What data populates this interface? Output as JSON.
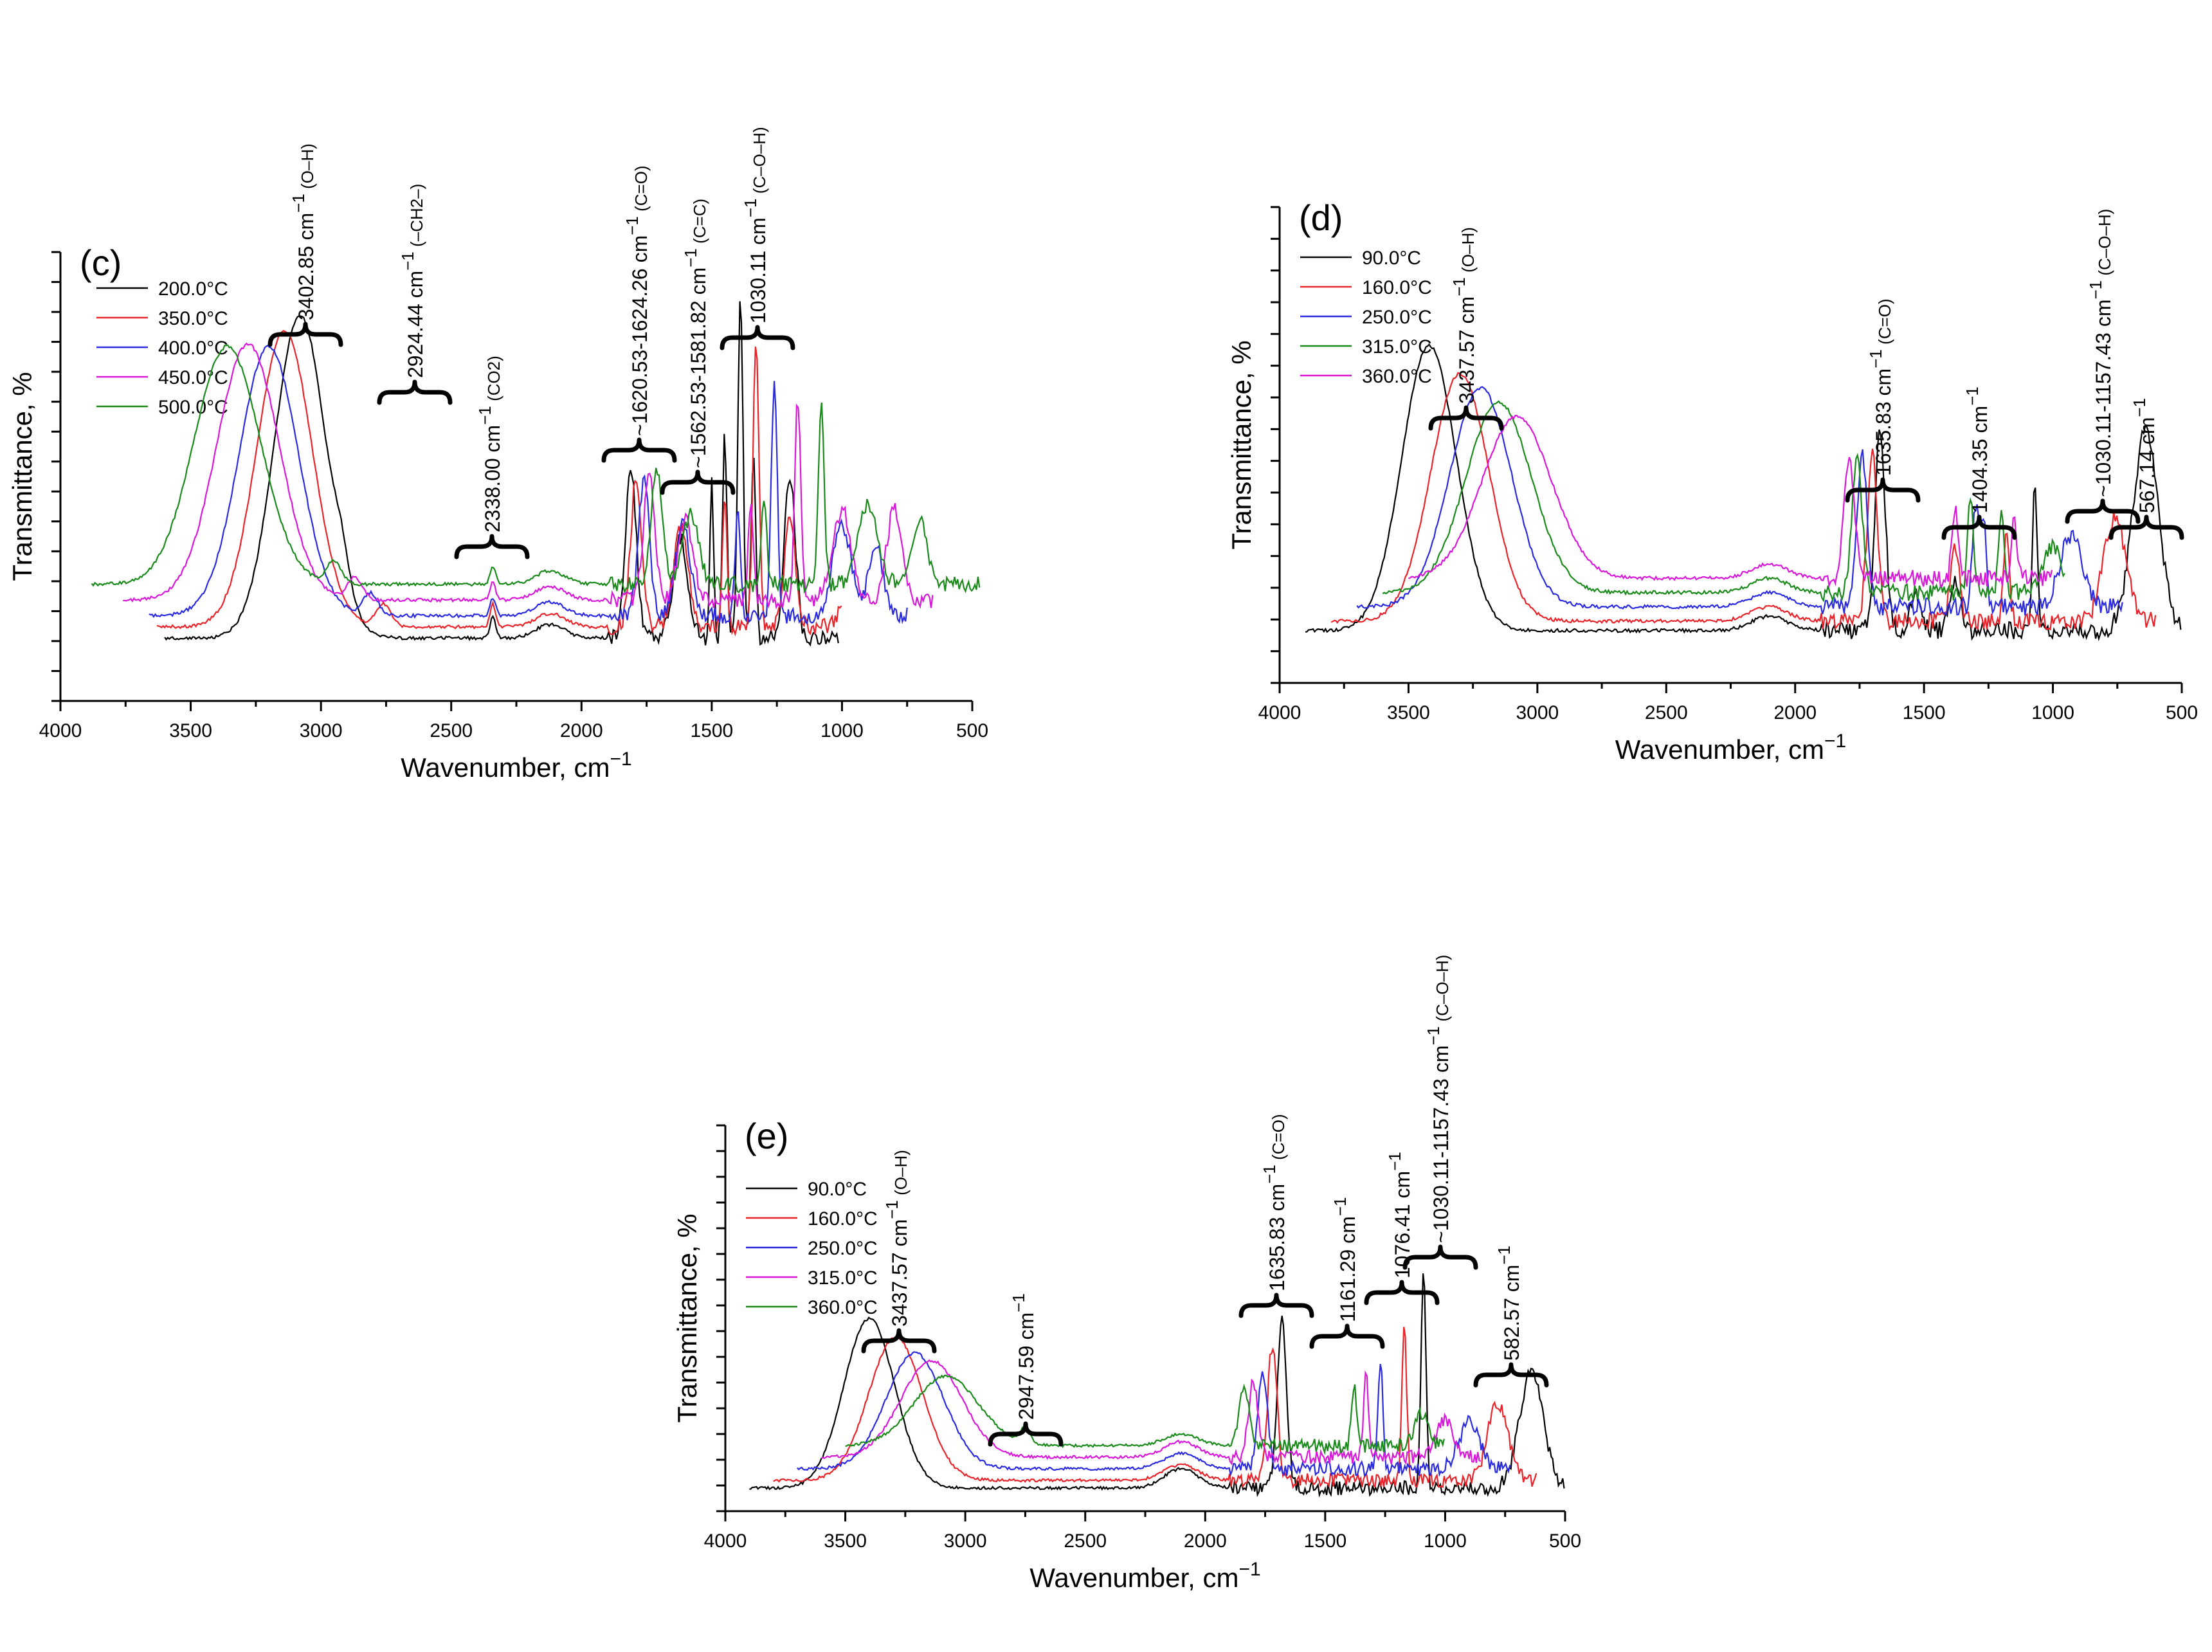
{
  "chart_data": [
    {
      "panel_label": "(c)",
      "type": "line",
      "xlabel": "Wavenumber, cm",
      "xlabel_sup": "−1",
      "ylabel": "Transmittance, %",
      "xlim": [
        4000,
        500
      ],
      "xticks": [
        4000,
        3500,
        3000,
        2500,
        2000,
        1500,
        1000,
        500
      ],
      "legend_position": "top-left",
      "series": [
        {
          "name": "200.0°C",
          "color": "#000000",
          "offset": 0,
          "x_start": 3600,
          "x_end": 1010,
          "base": 0.14,
          "peaks": [
            [
              3080,
              0.72,
              140
            ],
            [
              2920,
              0.06,
              40
            ],
            [
              2340,
              0.05,
              15
            ],
            [
              2120,
              0.03,
              80
            ],
            [
              1810,
              0.37,
              30
            ],
            [
              1620,
              0.22,
              40
            ],
            [
              1500,
              0.36,
              10
            ],
            [
              1450,
              0.45,
              12
            ],
            [
              1390,
              0.77,
              14
            ],
            [
              1340,
              0.42,
              12
            ],
            [
              1200,
              0.36,
              30
            ]
          ]
        },
        {
          "name": "350.0°C",
          "color": "#e8242a",
          "offset": 0.045,
          "x_start": 3630,
          "x_end": 1000,
          "base": 0.12,
          "peaks": [
            [
              3140,
              0.66,
              150
            ],
            [
              2760,
              0.05,
              40
            ],
            [
              2340,
              0.05,
              15
            ],
            [
              2120,
              0.03,
              80
            ],
            [
              1790,
              0.33,
              30
            ],
            [
              1620,
              0.22,
              40
            ],
            [
              1450,
              0.3,
              12
            ],
            [
              1330,
              0.64,
              16
            ],
            [
              1200,
              0.24,
              30
            ],
            [
              950,
              0.18,
              50
            ]
          ]
        },
        {
          "name": "400.0°C",
          "color": "#2a2ae0",
          "offset": 0.09,
          "x_start": 3660,
          "x_end": 750,
          "base": 0.1,
          "peaks": [
            [
              3200,
              0.6,
              160
            ],
            [
              2810,
              0.05,
              40
            ],
            [
              2340,
              0.04,
              15
            ],
            [
              2120,
              0.03,
              80
            ],
            [
              1760,
              0.3,
              30
            ],
            [
              1610,
              0.2,
              40
            ],
            [
              1400,
              0.25,
              14
            ],
            [
              1260,
              0.52,
              16
            ],
            [
              1000,
              0.2,
              50
            ],
            [
              870,
              0.15,
              40
            ]
          ]
        },
        {
          "name": "450.0°C",
          "color": "#d919d9",
          "offset": 0.135,
          "x_start": 3760,
          "x_end": 650,
          "base": 0.09,
          "peaks": [
            [
              3280,
              0.57,
              170
            ],
            [
              2870,
              0.05,
              40
            ],
            [
              2340,
              0.04,
              15
            ],
            [
              2120,
              0.03,
              80
            ],
            [
              1740,
              0.28,
              30
            ],
            [
              1600,
              0.18,
              40
            ],
            [
              1350,
              0.22,
              14
            ],
            [
              1170,
              0.45,
              16
            ],
            [
              1000,
              0.2,
              50
            ],
            [
              800,
              0.2,
              40
            ]
          ]
        },
        {
          "name": "500.0°C",
          "color": "#1a8a1a",
          "offset": 0.18,
          "x_start": 3880,
          "x_end": 470,
          "base": 0.08,
          "peaks": [
            [
              3360,
              0.53,
              180
            ],
            [
              2950,
              0.05,
              40
            ],
            [
              2340,
              0.04,
              15
            ],
            [
              2120,
              0.03,
              80
            ],
            [
              1710,
              0.26,
              30
            ],
            [
              1580,
              0.16,
              40
            ],
            [
              1300,
              0.2,
              14
            ],
            [
              1080,
              0.4,
              16
            ],
            [
              900,
              0.18,
              50
            ],
            [
              700,
              0.14,
              40
            ]
          ]
        }
      ],
      "annotations": [
        {
          "text": "3402.85 cm",
          "sup": "−1",
          "group": "(O–H)",
          "wavenumber": 3080
        },
        {
          "text": "2924.44 cm",
          "sup": "−1",
          "group": "(–CH2–)",
          "wavenumber": 2720
        },
        {
          "text": "2338.00 cm",
          "sup": "−1",
          "group": "(CO2)",
          "wavenumber": 2320
        },
        {
          "text": "~1620.53-1624.26 cm",
          "sup": "−1",
          "group": "(C=O)",
          "wavenumber": 1820
        },
        {
          "text": "~1562.53-1581.82 cm",
          "sup": "−1",
          "group": "(C=C)",
          "wavenumber": 1580
        },
        {
          "text": "1030.11 cm",
          "sup": "−1",
          "group": "(C–O–H)",
          "wavenumber": 1390
        }
      ]
    },
    {
      "panel_label": "(d)",
      "type": "line",
      "xlabel": "Wavenumber, cm",
      "xlabel_sup": "−1",
      "ylabel": "Transmittance, %",
      "xlim": [
        4000,
        500
      ],
      "xticks": [
        4000,
        3500,
        3000,
        2500,
        2000,
        1500,
        1000,
        500
      ],
      "legend_position": "top-left",
      "series": [
        {
          "name": "90.0°C",
          "color": "#000000",
          "offset": 0,
          "x_start": 3900,
          "x_end": 500,
          "base": 0.11,
          "peaks": [
            [
              3420,
              0.6,
              150
            ],
            [
              2100,
              0.03,
              100
            ],
            [
              1670,
              0.42,
              28
            ],
            [
              1530,
              0.08,
              30
            ],
            [
              1380,
              0.1,
              30
            ],
            [
              1070,
              0.3,
              14
            ],
            [
              640,
              0.42,
              70
            ]
          ]
        },
        {
          "name": "160.0°C",
          "color": "#e8242a",
          "offset": 0.03,
          "x_start": 3800,
          "x_end": 600,
          "base": 0.1,
          "peaks": [
            [
              3300,
              0.52,
              160
            ],
            [
              2100,
              0.03,
              100
            ],
            [
              1700,
              0.35,
              28
            ],
            [
              1380,
              0.15,
              25
            ],
            [
              1180,
              0.18,
              16
            ],
            [
              760,
              0.22,
              60
            ]
          ]
        },
        {
          "name": "250.0°C",
          "color": "#2a2ae0",
          "offset": 0.06,
          "x_start": 3700,
          "x_end": 730,
          "base": 0.1,
          "peaks": [
            [
              3220,
              0.46,
              170
            ],
            [
              2100,
              0.03,
              100
            ],
            [
              1740,
              0.32,
              28
            ],
            [
              1300,
              0.2,
              18
            ],
            [
              1270,
              0.18,
              16
            ],
            [
              930,
              0.15,
              60
            ]
          ]
        },
        {
          "name": "315.0°C",
          "color": "#1a8a1a",
          "offset": 0.09,
          "x_start": 3600,
          "x_end": 950,
          "base": 0.1,
          "peaks": [
            [
              3150,
              0.4,
              180
            ],
            [
              2100,
              0.03,
              100
            ],
            [
              1760,
              0.28,
              28
            ],
            [
              1320,
              0.2,
              16
            ],
            [
              1200,
              0.16,
              16
            ],
            [
              1000,
              0.1,
              50
            ]
          ]
        },
        {
          "name": "360.0°C",
          "color": "#d919d9",
          "offset": 0.12,
          "x_start": 3500,
          "x_end": 1000,
          "base": 0.1,
          "peaks": [
            [
              3080,
              0.34,
              190
            ],
            [
              2100,
              0.03,
              100
            ],
            [
              1790,
              0.25,
              28
            ],
            [
              1380,
              0.15,
              16
            ],
            [
              1150,
              0.12,
              16
            ]
          ]
        }
      ],
      "annotations": [
        {
          "text": "3437.57 cm",
          "sup": "−1",
          "group": "(O–H)",
          "wavenumber": 3330
        },
        {
          "text": "1635.83 cm",
          "sup": "−1",
          "group": "(C=O)",
          "wavenumber": 1670
        },
        {
          "text": "1404.35 cm",
          "sup": "−1",
          "group": "",
          "wavenumber": 1300
        },
        {
          "text": "~1030.11-1157.43 cm",
          "sup": "−1",
          "group": "(C–O–H)",
          "wavenumber": 970
        },
        {
          "text": "567.14 cm",
          "sup": "−1",
          "group": "",
          "wavenumber": 650
        }
      ]
    },
    {
      "panel_label": "(e)",
      "type": "line",
      "xlabel": "Wavenumber, cm",
      "xlabel_sup": "−1",
      "ylabel": "Transmittance, %",
      "xlim": [
        4000,
        500
      ],
      "xticks": [
        4000,
        3500,
        3000,
        2500,
        2000,
        1500,
        1000,
        500
      ],
      "legend_position": "top-left",
      "series": [
        {
          "name": "90.0°C",
          "color": "#000000",
          "offset": 0,
          "x_start": 3900,
          "x_end": 500,
          "base": 0.06,
          "peaks": [
            [
              3400,
              0.44,
              150
            ],
            [
              2100,
              0.05,
              100
            ],
            [
              1680,
              0.43,
              28
            ],
            [
              1090,
              0.58,
              14
            ],
            [
              640,
              0.3,
              70
            ]
          ]
        },
        {
          "name": "160.0°C",
          "color": "#e8242a",
          "offset": 0.03,
          "x_start": 3800,
          "x_end": 620,
          "base": 0.05,
          "peaks": [
            [
              3290,
              0.37,
              160
            ],
            [
              2100,
              0.04,
              100
            ],
            [
              1720,
              0.35,
              28
            ],
            [
              1170,
              0.4,
              14
            ],
            [
              780,
              0.2,
              60
            ]
          ]
        },
        {
          "name": "250.0°C",
          "color": "#2a2ae0",
          "offset": 0.06,
          "x_start": 3700,
          "x_end": 730,
          "base": 0.05,
          "peaks": [
            [
              3210,
              0.3,
              170
            ],
            [
              2100,
              0.04,
              100
            ],
            [
              1760,
              0.25,
              28
            ],
            [
              1270,
              0.28,
              14
            ],
            [
              900,
              0.12,
              60
            ]
          ]
        },
        {
          "name": "315.0°C",
          "color": "#d919d9",
          "offset": 0.09,
          "x_start": 3600,
          "x_end": 850,
          "base": 0.05,
          "peaks": [
            [
              3140,
              0.25,
              180
            ],
            [
              2100,
              0.04,
              100
            ],
            [
              1800,
              0.2,
              28
            ],
            [
              1330,
              0.22,
              14
            ],
            [
              1000,
              0.1,
              50
            ]
          ]
        },
        {
          "name": "360.0°C",
          "color": "#1a8a1a",
          "offset": 0.12,
          "x_start": 3500,
          "x_end": 1000,
          "base": 0.05,
          "peaks": [
            [
              3080,
              0.18,
              190
            ],
            [
              2750,
              0.04,
              30
            ],
            [
              2100,
              0.03,
              100
            ],
            [
              1840,
              0.16,
              28
            ],
            [
              1380,
              0.16,
              14
            ],
            [
              1100,
              0.08,
              40
            ]
          ]
        }
      ],
      "annotations": [
        {
          "text": "3437.57 cm",
          "sup": "−1",
          "group": "(O–H)",
          "wavenumber": 3220
        },
        {
          "text": "2947.59 cm",
          "sup": "−1",
          "group": "",
          "wavenumber": 2680
        },
        {
          "text": "1635.83 cm",
          "sup": "−1",
          "group": "(C=O)",
          "wavenumber": 1750
        },
        {
          "text": "1161.29 cm",
          "sup": "−1",
          "group": "",
          "wavenumber": 1400
        },
        {
          "text": "1076.41 cm",
          "sup": "−1",
          "group": "",
          "wavenumber": 1270
        },
        {
          "text": "~1030.11-1157.43 cm",
          "sup": "−1",
          "group": "(C–O–H)",
          "wavenumber": 1130
        },
        {
          "text": "582.57 cm",
          "sup": "−1",
          "group": "",
          "wavenumber": 760
        }
      ]
    }
  ]
}
